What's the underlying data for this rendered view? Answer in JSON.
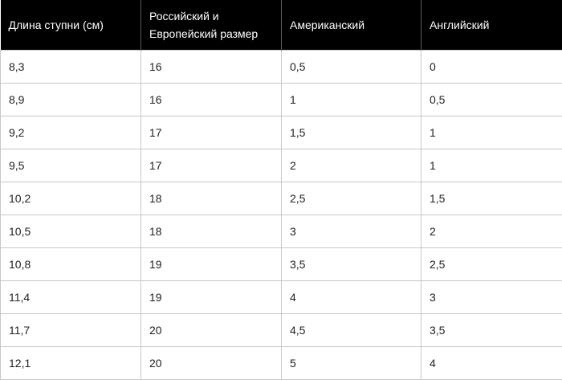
{
  "table": {
    "headers": [
      "Длина ступни (см)",
      "Российский и Европейский размер",
      "Американский",
      "Английский"
    ],
    "rows": [
      [
        "8,3",
        "16",
        "0,5",
        "0"
      ],
      [
        "8,9",
        "16",
        "1",
        "0,5"
      ],
      [
        "9,2",
        "17",
        "1,5",
        "1"
      ],
      [
        "9,5",
        "17",
        "2",
        "1"
      ],
      [
        "10,2",
        "18",
        "2,5",
        "1,5"
      ],
      [
        "10,5",
        "18",
        "3",
        "2"
      ],
      [
        "10,8",
        "19",
        "3,5",
        "2,5"
      ],
      [
        "11,4",
        "19",
        "4",
        "3"
      ],
      [
        "11,7",
        "20",
        "4,5",
        "3,5"
      ],
      [
        "12,1",
        "20",
        "5",
        "4"
      ]
    ]
  },
  "colors": {
    "header_background": "#000000",
    "header_text": "#ffffff",
    "grid_line": "#c8c8c8",
    "cell_text": "#222222"
  }
}
